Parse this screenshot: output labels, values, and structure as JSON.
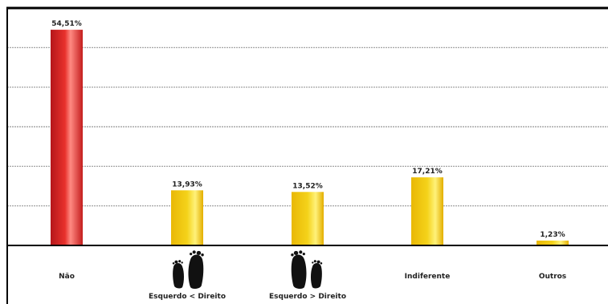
{
  "chart_data": {
    "type": "bar",
    "categories": [
      "Não",
      "Esquerdo < Direito",
      "Esquerdo > Direito",
      "Indiferente",
      "Outros"
    ],
    "values": [
      54.51,
      13.93,
      13.52,
      17.21,
      1.23
    ],
    "value_labels": [
      "54,51%",
      "13,93%",
      "13,52%",
      "17,21%",
      "1,23%"
    ],
    "category_icons": [
      "",
      "feet-left-smaller-icon",
      "feet-left-larger-icon",
      "",
      ""
    ],
    "ylim": [
      0,
      60
    ],
    "grid": true,
    "colors": {
      "highlight_bar": "#e8312c",
      "bar": "#f4d21a",
      "grid": "#999999",
      "axis": "#000000"
    }
  }
}
